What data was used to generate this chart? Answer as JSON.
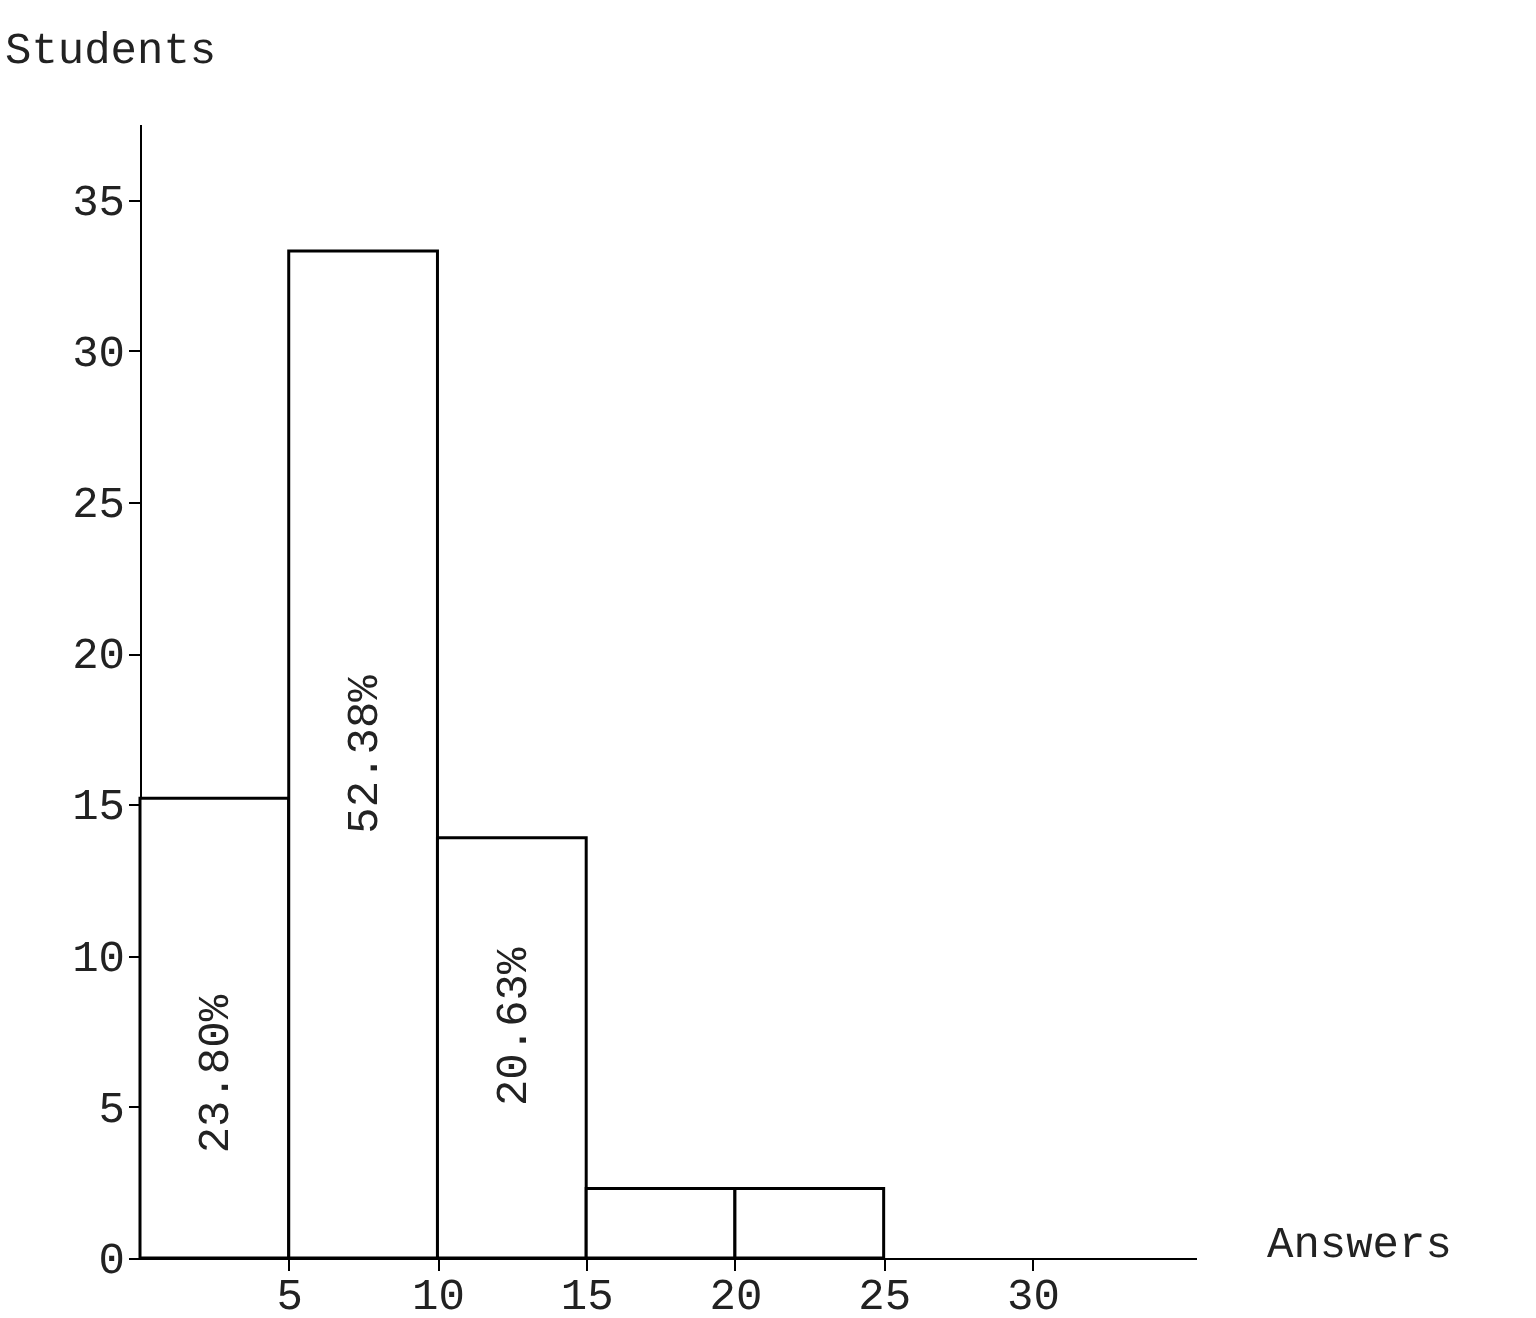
{
  "chart_data": {
    "type": "histogram",
    "xlabel": "Answers",
    "ylabel": "Students",
    "bins": [
      0,
      5,
      10,
      15,
      20,
      25
    ],
    "values": [
      15.2,
      33.3,
      13.9,
      2.3,
      2.3
    ],
    "annotations": [
      "23.80%",
      "52.38%",
      "20.63%"
    ],
    "xlim": [
      0,
      35.5
    ],
    "ylim": [
      0,
      37.5
    ],
    "xticks": [
      5,
      10,
      15,
      20,
      25,
      30
    ],
    "yticks": [
      0,
      5,
      10,
      15,
      20,
      25,
      30,
      35
    ]
  }
}
